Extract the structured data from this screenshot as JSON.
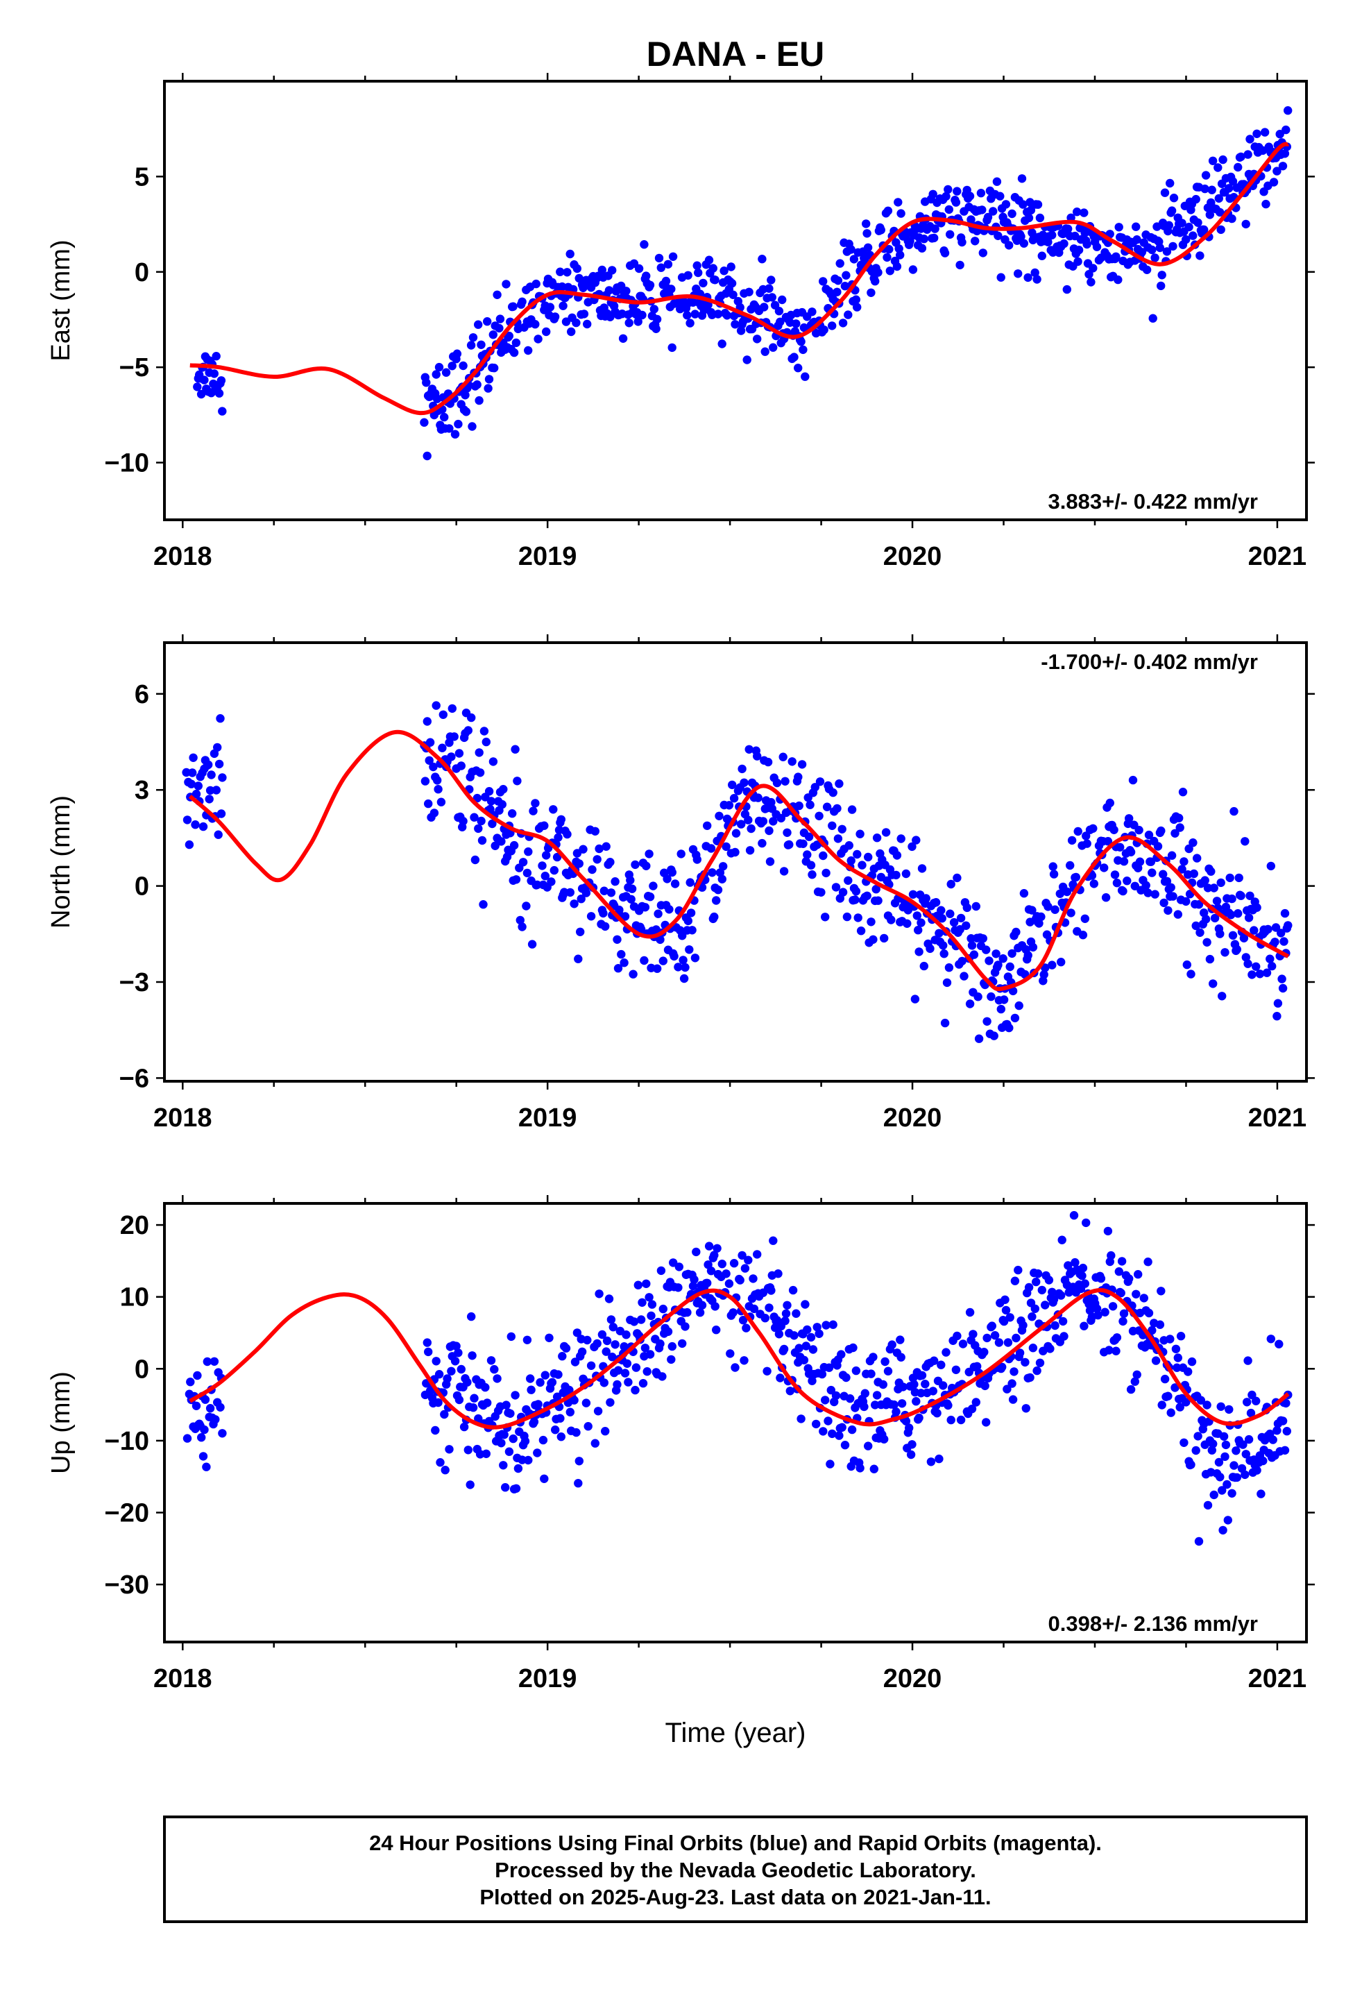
{
  "title": "DANA - EU",
  "xlabel": "Time (year)",
  "footer": {
    "line1": "24 Hour Positions Using Final Orbits (blue) and Rapid Orbits (magenta).",
    "line2": "Processed by the Nevada Geodetic Laboratory.",
    "line3": "Plotted on 2025-Aug-23. Last data on 2021-Jan-11."
  },
  "colors": {
    "points": "#0000ff",
    "fit": "#ff0000",
    "axis": "#000000"
  },
  "chart_data": [
    {
      "type": "scatter",
      "id": "east",
      "ylabel": "East (mm)",
      "rate": "3.883+/- 0.422 mm/yr",
      "rate_position": "bottom-right",
      "xlim": [
        2017.95,
        2021.08
      ],
      "ylim": [
        -13,
        10
      ],
      "xticks": [
        2018,
        2019,
        2020,
        2021
      ],
      "xtick_labels": [
        "2018",
        "2019",
        "2020",
        "2021"
      ],
      "yticks": [
        -10,
        -5,
        0,
        5
      ],
      "ytick_labels": [
        "−10",
        "−5",
        "0",
        "5"
      ],
      "fit": {
        "x": [
          2018.02,
          2018.1,
          2018.25,
          2018.4,
          2018.55,
          2018.65,
          2018.72,
          2018.8,
          2018.9,
          2019.0,
          2019.1,
          2019.25,
          2019.4,
          2019.55,
          2019.68,
          2019.8,
          2019.9,
          2020.0,
          2020.1,
          2020.2,
          2020.3,
          2020.45,
          2020.55,
          2020.68,
          2020.8,
          2020.9,
          2021.0,
          2021.03
        ],
        "y": [
          -4.9,
          -5.0,
          -5.5,
          -5.1,
          -6.6,
          -7.4,
          -6.8,
          -5.3,
          -2.8,
          -1.2,
          -1.2,
          -1.6,
          -1.3,
          -2.3,
          -3.4,
          -1.6,
          0.9,
          2.6,
          2.7,
          2.3,
          2.3,
          2.6,
          1.6,
          0.4,
          1.8,
          4.0,
          6.4,
          6.7
        ]
      },
      "trend_samples": [
        {
          "x": 2018.08,
          "y": -5.3,
          "spread": 1.0
        },
        {
          "x": 2018.7,
          "y": -7.2,
          "spread": 2.0
        },
        {
          "x": 2018.85,
          "y": -4.2,
          "spread": 1.6
        },
        {
          "x": 2019.0,
          "y": -1.0,
          "spread": 1.2
        },
        {
          "x": 2019.25,
          "y": -1.5,
          "spread": 1.4
        },
        {
          "x": 2019.5,
          "y": -1.4,
          "spread": 1.4
        },
        {
          "x": 2019.7,
          "y": -3.4,
          "spread": 1.2
        },
        {
          "x": 2019.9,
          "y": 1.0,
          "spread": 1.4
        },
        {
          "x": 2020.05,
          "y": 2.8,
          "spread": 1.5
        },
        {
          "x": 2020.3,
          "y": 2.4,
          "spread": 1.5
        },
        {
          "x": 2020.6,
          "y": 1.0,
          "spread": 1.2
        },
        {
          "x": 2020.8,
          "y": 2.5,
          "spread": 1.8
        },
        {
          "x": 2021.03,
          "y": 6.8,
          "spread": 1.4
        }
      ]
    },
    {
      "type": "scatter",
      "id": "north",
      "ylabel": "North (mm)",
      "rate": "-1.700+/- 0.402 mm/yr",
      "rate_position": "top-right",
      "xlim": [
        2017.95,
        2021.08
      ],
      "ylim": [
        -6.1,
        7.6
      ],
      "xticks": [
        2018,
        2019,
        2020,
        2021
      ],
      "xtick_labels": [
        "2018",
        "2019",
        "2020",
        "2021"
      ],
      "yticks": [
        -6,
        -3,
        0,
        3,
        6
      ],
      "ytick_labels": [
        "−6",
        "−3",
        "0",
        "3",
        "6"
      ],
      "fit": {
        "x": [
          2018.02,
          2018.1,
          2018.2,
          2018.27,
          2018.35,
          2018.45,
          2018.58,
          2018.7,
          2018.8,
          2018.9,
          2019.0,
          2019.1,
          2019.25,
          2019.35,
          2019.45,
          2019.58,
          2019.7,
          2019.8,
          2019.9,
          2020.0,
          2020.1,
          2020.2,
          2020.25,
          2020.35,
          2020.45,
          2020.58,
          2020.7,
          2020.8,
          2020.92,
          2021.03
        ],
        "y": [
          2.8,
          2.0,
          0.7,
          0.2,
          1.3,
          3.5,
          4.8,
          4.0,
          2.6,
          1.8,
          1.4,
          0.2,
          -1.5,
          -1.1,
          0.8,
          3.1,
          2.0,
          0.8,
          0.1,
          -0.5,
          -1.5,
          -2.9,
          -3.2,
          -2.5,
          -0.1,
          1.5,
          0.7,
          -0.5,
          -1.5,
          -2.2
        ]
      },
      "trend_samples": [
        {
          "x": 2018.05,
          "y": 3.0,
          "spread": 1.4
        },
        {
          "x": 2018.72,
          "y": 4.2,
          "spread": 1.8
        },
        {
          "x": 2018.85,
          "y": 2.2,
          "spread": 1.5
        },
        {
          "x": 2019.0,
          "y": 1.3,
          "spread": 1.4
        },
        {
          "x": 2019.2,
          "y": -1.0,
          "spread": 1.3
        },
        {
          "x": 2019.35,
          "y": -1.2,
          "spread": 1.4
        },
        {
          "x": 2019.55,
          "y": 2.8,
          "spread": 1.3
        },
        {
          "x": 2019.7,
          "y": 2.0,
          "spread": 1.6
        },
        {
          "x": 2019.9,
          "y": 0.0,
          "spread": 1.3
        },
        {
          "x": 2020.1,
          "y": -1.5,
          "spread": 1.3
        },
        {
          "x": 2020.25,
          "y": -3.3,
          "spread": 1.2
        },
        {
          "x": 2020.5,
          "y": 1.0,
          "spread": 1.3
        },
        {
          "x": 2020.65,
          "y": 1.0,
          "spread": 1.4
        },
        {
          "x": 2020.82,
          "y": -0.8,
          "spread": 1.6
        },
        {
          "x": 2021.0,
          "y": -1.9,
          "spread": 1.3
        }
      ]
    },
    {
      "type": "scatter",
      "id": "up",
      "ylabel": "Up (mm)",
      "rate": "0.398+/- 2.136 mm/yr",
      "rate_position": "bottom-right",
      "xlim": [
        2017.95,
        2021.08
      ],
      "ylim": [
        -38,
        23
      ],
      "xticks": [
        2018,
        2019,
        2020,
        2021
      ],
      "xtick_labels": [
        "2018",
        "2019",
        "2020",
        "2021"
      ],
      "yticks": [
        -30,
        -20,
        -10,
        0,
        10,
        20
      ],
      "ytick_labels": [
        "−30",
        "−20",
        "−10",
        "0",
        "10",
        "20"
      ],
      "fit": {
        "x": [
          2018.02,
          2018.1,
          2018.2,
          2018.3,
          2018.4,
          2018.48,
          2018.56,
          2018.65,
          2018.72,
          2018.8,
          2018.88,
          2019.0,
          2019.1,
          2019.2,
          2019.3,
          2019.42,
          2019.5,
          2019.58,
          2019.7,
          2019.85,
          2019.95,
          2020.05,
          2020.2,
          2020.35,
          2020.48,
          2020.56,
          2020.65,
          2020.75,
          2020.85,
          2020.95,
          2021.03
        ],
        "y": [
          -4.5,
          -2.0,
          2.5,
          7.5,
          10.0,
          10.0,
          7.0,
          0.5,
          -4.5,
          -7.5,
          -8.0,
          -5.5,
          -2.5,
          1.5,
          6.0,
          10.5,
          10.0,
          5.0,
          -3.5,
          -7.5,
          -7.0,
          -5.0,
          -0.5,
          5.5,
          10.5,
          10.0,
          4.5,
          -3.5,
          -7.5,
          -6.5,
          -3.5
        ]
      },
      "trend_samples": [
        {
          "x": 2018.05,
          "y": -5.0,
          "spread": 5.0
        },
        {
          "x": 2018.72,
          "y": -3.0,
          "spread": 6.0
        },
        {
          "x": 2018.9,
          "y": -8.0,
          "spread": 6.0
        },
        {
          "x": 2019.05,
          "y": -4.0,
          "spread": 6.0
        },
        {
          "x": 2019.25,
          "y": 3.5,
          "spread": 6.0
        },
        {
          "x": 2019.45,
          "y": 12.0,
          "spread": 5.0
        },
        {
          "x": 2019.6,
          "y": 7.0,
          "spread": 6.0
        },
        {
          "x": 2019.8,
          "y": -6.0,
          "spread": 6.0
        },
        {
          "x": 2020.0,
          "y": -4.0,
          "spread": 6.0
        },
        {
          "x": 2020.25,
          "y": 2.0,
          "spread": 6.0
        },
        {
          "x": 2020.45,
          "y": 12.0,
          "spread": 5.0
        },
        {
          "x": 2020.62,
          "y": 7.0,
          "spread": 6.0
        },
        {
          "x": 2020.85,
          "y": -14.0,
          "spread": 7.0
        },
        {
          "x": 2021.02,
          "y": -6.0,
          "spread": 6.0
        }
      ]
    }
  ]
}
